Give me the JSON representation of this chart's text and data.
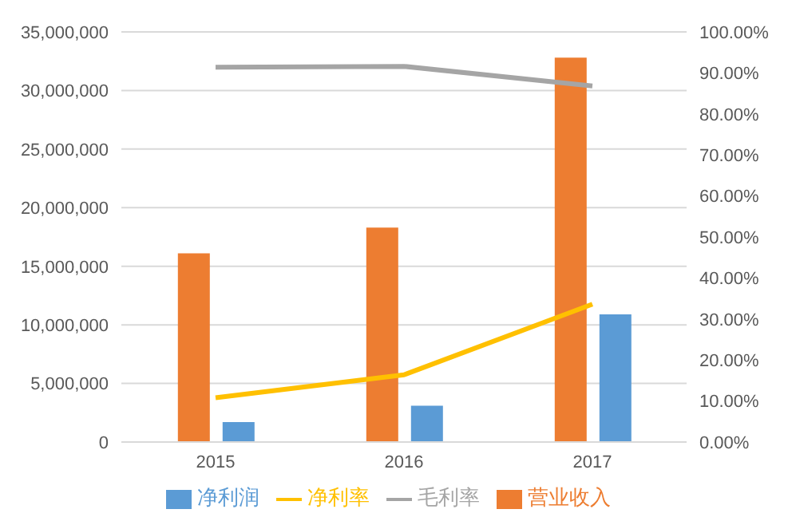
{
  "chart_data": {
    "type": "bar",
    "categories": [
      "2015",
      "2016",
      "2017"
    ],
    "series": [
      {
        "name": "营业收入",
        "color": "#ed7d31",
        "values": [
          16100000,
          18300000,
          32800000
        ]
      },
      {
        "name": "净利润",
        "color": "#5b9bd5",
        "values": [
          1700000,
          3100000,
          10900000
        ]
      },
      {
        "name": "毛利率",
        "type": "line",
        "axis": "y2",
        "color": "#a5a5a5",
        "values": [
          91.4,
          91.6,
          86.8
        ]
      },
      {
        "name": "净利率",
        "type": "line",
        "axis": "y2",
        "color": "#ffc000",
        "values": [
          10.8,
          16.4,
          33.6
        ]
      }
    ],
    "ylim": [
      0,
      35000000
    ],
    "yticks": [
      {
        "value": 0,
        "label": "0"
      },
      {
        "value": 5000000,
        "label": "5,000,000"
      },
      {
        "value": 10000000,
        "label": "10,000,000"
      },
      {
        "value": 15000000,
        "label": "15,000,000"
      },
      {
        "value": 20000000,
        "label": "20,000,000"
      },
      {
        "value": 25000000,
        "label": "25,000,000"
      },
      {
        "value": 30000000,
        "label": "30,000,000"
      },
      {
        "value": 35000000,
        "label": "35,000,000"
      }
    ],
    "y2lim": [
      0,
      100
    ],
    "y2ticks": [
      {
        "value": 0,
        "label": "0.00%"
      },
      {
        "value": 10,
        "label": "10.00%"
      },
      {
        "value": 20,
        "label": "20.00%"
      },
      {
        "value": 30,
        "label": "30.00%"
      },
      {
        "value": 40,
        "label": "40.00%"
      },
      {
        "value": 50,
        "label": "50.00%"
      },
      {
        "value": 60,
        "label": "60.00%"
      },
      {
        "value": 70,
        "label": "70.00%"
      },
      {
        "value": 80,
        "label": "80.00%"
      },
      {
        "value": 90,
        "label": "90.00%"
      },
      {
        "value": 100,
        "label": "100.00%"
      }
    ],
    "grid": "y",
    "legend": "bottom",
    "marker": "none",
    "line_style": "solid"
  }
}
